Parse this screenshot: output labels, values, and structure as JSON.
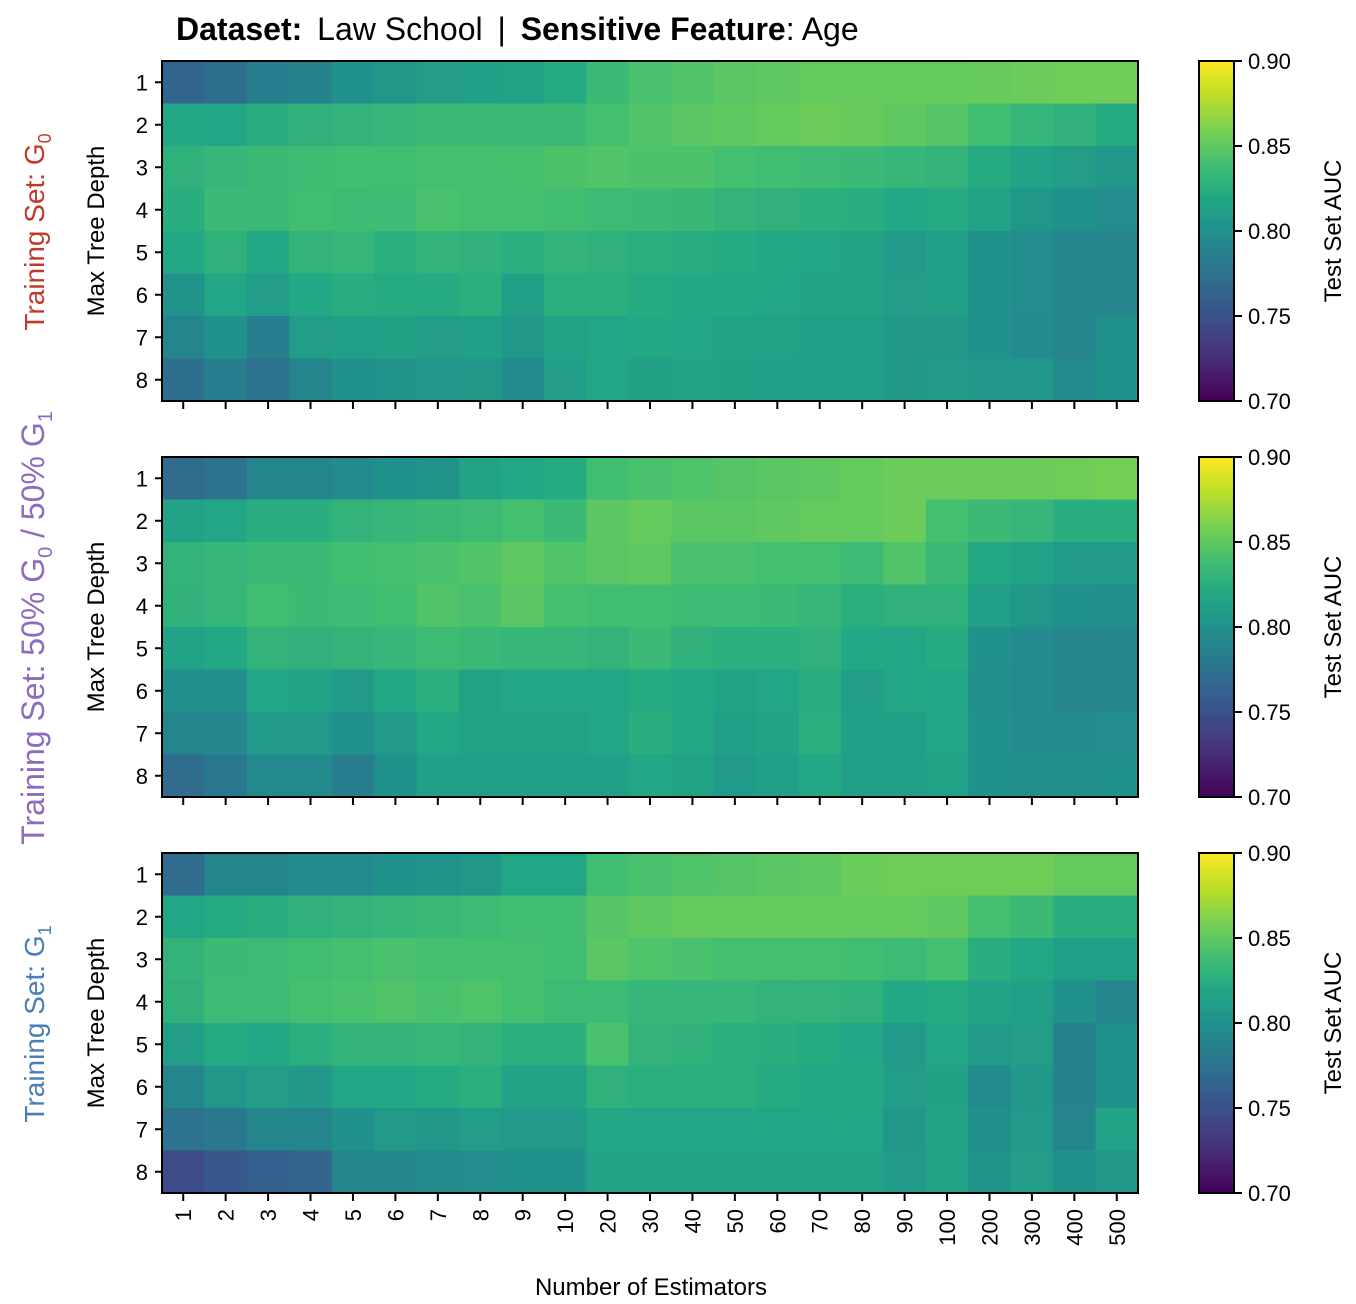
{
  "title": {
    "dataset_label": "Dataset:",
    "dataset_value": "Law School",
    "separator": "|",
    "feature_label": "Sensitive Feature",
    "feature_value": ": Age"
  },
  "panel_labels": [
    {
      "text": "Training Set: G",
      "subscript": "0",
      "color": "#c0392b"
    },
    {
      "text": "Training Set: 50% G",
      "subscript": "0",
      "mid": " / 50% G",
      "subscript2": "1",
      "color": "#8e6bbf"
    },
    {
      "text": "Training Set: G",
      "subscript": "1",
      "color": "#4a7fb5"
    }
  ],
  "chart_data": [
    {
      "type": "heatmap",
      "panel": "Training Set: G0",
      "xlabel": "Number of Estimators",
      "ylabel": "Max Tree Depth",
      "x_categories": [
        "1",
        "2",
        "3",
        "4",
        "5",
        "6",
        "7",
        "8",
        "9",
        "10",
        "20",
        "30",
        "40",
        "50",
        "60",
        "70",
        "80",
        "90",
        "100",
        "200",
        "300",
        "400",
        "500"
      ],
      "y_categories": [
        "1",
        "2",
        "3",
        "4",
        "5",
        "6",
        "7",
        "8"
      ],
      "colorbar": {
        "label": "Test Set AUC",
        "min": 0.7,
        "max": 0.9,
        "ticks": [
          "0.70",
          "0.75",
          "0.80",
          "0.85",
          "0.90"
        ],
        "colormap": "viridis"
      },
      "values": [
        [
          0.765,
          0.772,
          0.785,
          0.788,
          0.8,
          0.805,
          0.81,
          0.813,
          0.815,
          0.822,
          0.835,
          0.842,
          0.845,
          0.848,
          0.85,
          0.852,
          0.852,
          0.852,
          0.852,
          0.853,
          0.855,
          0.856,
          0.856
        ],
        [
          0.82,
          0.818,
          0.825,
          0.828,
          0.83,
          0.832,
          0.834,
          0.834,
          0.835,
          0.835,
          0.84,
          0.845,
          0.848,
          0.85,
          0.852,
          0.855,
          0.853,
          0.85,
          0.846,
          0.838,
          0.832,
          0.828,
          0.822
        ],
        [
          0.828,
          0.832,
          0.835,
          0.837,
          0.838,
          0.838,
          0.84,
          0.84,
          0.841,
          0.843,
          0.845,
          0.843,
          0.843,
          0.84,
          0.838,
          0.836,
          0.835,
          0.832,
          0.83,
          0.822,
          0.815,
          0.81,
          0.805
        ],
        [
          0.825,
          0.835,
          0.835,
          0.838,
          0.836,
          0.837,
          0.842,
          0.84,
          0.84,
          0.838,
          0.836,
          0.835,
          0.833,
          0.83,
          0.828,
          0.826,
          0.825,
          0.82,
          0.822,
          0.815,
          0.805,
          0.8,
          0.796
        ],
        [
          0.82,
          0.828,
          0.82,
          0.83,
          0.832,
          0.826,
          0.83,
          0.828,
          0.826,
          0.83,
          0.828,
          0.826,
          0.824,
          0.822,
          0.82,
          0.818,
          0.816,
          0.808,
          0.812,
          0.8,
          0.796,
          0.79,
          0.79
        ],
        [
          0.802,
          0.818,
          0.81,
          0.82,
          0.824,
          0.822,
          0.822,
          0.826,
          0.812,
          0.826,
          0.826,
          0.822,
          0.82,
          0.82,
          0.818,
          0.816,
          0.816,
          0.81,
          0.812,
          0.8,
          0.796,
          0.792,
          0.792
        ],
        [
          0.79,
          0.8,
          0.785,
          0.81,
          0.812,
          0.814,
          0.81,
          0.812,
          0.805,
          0.815,
          0.818,
          0.82,
          0.818,
          0.815,
          0.815,
          0.812,
          0.812,
          0.805,
          0.806,
          0.8,
          0.795,
          0.79,
          0.8
        ],
        [
          0.772,
          0.785,
          0.775,
          0.79,
          0.8,
          0.802,
          0.804,
          0.805,
          0.795,
          0.81,
          0.818,
          0.814,
          0.816,
          0.814,
          0.812,
          0.812,
          0.812,
          0.806,
          0.808,
          0.804,
          0.804,
          0.795,
          0.8
        ]
      ]
    },
    {
      "type": "heatmap",
      "panel": "Training Set: 50% G0 / 50% G1",
      "xlabel": "Number of Estimators",
      "ylabel": "Max Tree Depth",
      "x_categories": [
        "1",
        "2",
        "3",
        "4",
        "5",
        "6",
        "7",
        "8",
        "9",
        "10",
        "20",
        "30",
        "40",
        "50",
        "60",
        "70",
        "80",
        "90",
        "100",
        "200",
        "300",
        "400",
        "500"
      ],
      "y_categories": [
        "1",
        "2",
        "3",
        "4",
        "5",
        "6",
        "7",
        "8"
      ],
      "colorbar": {
        "label": "Test Set AUC",
        "min": 0.7,
        "max": 0.9,
        "ticks": [
          "0.70",
          "0.75",
          "0.80",
          "0.85",
          "0.90"
        ],
        "colormap": "viridis"
      },
      "values": [
        [
          0.77,
          0.775,
          0.79,
          0.79,
          0.795,
          0.8,
          0.802,
          0.815,
          0.82,
          0.822,
          0.838,
          0.842,
          0.844,
          0.846,
          0.848,
          0.85,
          0.852,
          0.855,
          0.855,
          0.855,
          0.855,
          0.856,
          0.858
        ],
        [
          0.815,
          0.818,
          0.825,
          0.825,
          0.83,
          0.832,
          0.834,
          0.836,
          0.84,
          0.835,
          0.848,
          0.852,
          0.848,
          0.848,
          0.85,
          0.852,
          0.852,
          0.855,
          0.84,
          0.835,
          0.832,
          0.825,
          0.825
        ],
        [
          0.83,
          0.832,
          0.834,
          0.835,
          0.838,
          0.84,
          0.842,
          0.845,
          0.85,
          0.845,
          0.848,
          0.85,
          0.842,
          0.842,
          0.84,
          0.84,
          0.836,
          0.845,
          0.835,
          0.82,
          0.815,
          0.808,
          0.808
        ],
        [
          0.828,
          0.832,
          0.838,
          0.835,
          0.836,
          0.838,
          0.845,
          0.842,
          0.848,
          0.84,
          0.838,
          0.838,
          0.836,
          0.836,
          0.835,
          0.832,
          0.826,
          0.828,
          0.828,
          0.812,
          0.805,
          0.8,
          0.798
        ],
        [
          0.815,
          0.82,
          0.83,
          0.828,
          0.83,
          0.832,
          0.836,
          0.834,
          0.832,
          0.832,
          0.83,
          0.835,
          0.828,
          0.826,
          0.826,
          0.828,
          0.82,
          0.818,
          0.822,
          0.8,
          0.795,
          0.79,
          0.79
        ],
        [
          0.798,
          0.798,
          0.818,
          0.815,
          0.808,
          0.82,
          0.826,
          0.816,
          0.818,
          0.818,
          0.818,
          0.822,
          0.82,
          0.816,
          0.818,
          0.824,
          0.81,
          0.818,
          0.818,
          0.798,
          0.795,
          0.79,
          0.792
        ],
        [
          0.79,
          0.792,
          0.808,
          0.808,
          0.8,
          0.808,
          0.82,
          0.815,
          0.815,
          0.815,
          0.818,
          0.825,
          0.82,
          0.812,
          0.815,
          0.826,
          0.812,
          0.812,
          0.818,
          0.8,
          0.795,
          0.795,
          0.796
        ],
        [
          0.77,
          0.78,
          0.795,
          0.795,
          0.785,
          0.8,
          0.812,
          0.812,
          0.812,
          0.812,
          0.812,
          0.818,
          0.816,
          0.808,
          0.812,
          0.82,
          0.812,
          0.812,
          0.815,
          0.8,
          0.798,
          0.798,
          0.8
        ]
      ]
    },
    {
      "type": "heatmap",
      "panel": "Training Set: G1",
      "xlabel": "Number of Estimators",
      "ylabel": "Max Tree Depth",
      "x_categories": [
        "1",
        "2",
        "3",
        "4",
        "5",
        "6",
        "7",
        "8",
        "9",
        "10",
        "20",
        "30",
        "40",
        "50",
        "60",
        "70",
        "80",
        "90",
        "100",
        "200",
        "300",
        "400",
        "500"
      ],
      "y_categories": [
        "1",
        "2",
        "3",
        "4",
        "5",
        "6",
        "7",
        "8"
      ],
      "colorbar": {
        "label": "Test Set AUC",
        "min": 0.7,
        "max": 0.9,
        "ticks": [
          "0.70",
          "0.75",
          "0.80",
          "0.85",
          "0.90"
        ],
        "colormap": "viridis"
      },
      "values": [
        [
          0.77,
          0.79,
          0.79,
          0.795,
          0.795,
          0.8,
          0.802,
          0.805,
          0.818,
          0.818,
          0.838,
          0.842,
          0.844,
          0.846,
          0.848,
          0.85,
          0.854,
          0.856,
          0.856,
          0.856,
          0.856,
          0.852,
          0.852
        ],
        [
          0.818,
          0.822,
          0.825,
          0.828,
          0.83,
          0.832,
          0.834,
          0.836,
          0.838,
          0.838,
          0.846,
          0.85,
          0.852,
          0.852,
          0.852,
          0.852,
          0.852,
          0.852,
          0.85,
          0.84,
          0.835,
          0.825,
          0.825
        ],
        [
          0.83,
          0.835,
          0.836,
          0.838,
          0.84,
          0.842,
          0.84,
          0.84,
          0.84,
          0.838,
          0.848,
          0.844,
          0.842,
          0.84,
          0.84,
          0.84,
          0.838,
          0.836,
          0.84,
          0.825,
          0.82,
          0.812,
          0.812
        ],
        [
          0.828,
          0.836,
          0.836,
          0.84,
          0.842,
          0.845,
          0.842,
          0.844,
          0.84,
          0.836,
          0.836,
          0.832,
          0.832,
          0.832,
          0.83,
          0.83,
          0.828,
          0.82,
          0.822,
          0.815,
          0.812,
          0.8,
          0.792
        ],
        [
          0.81,
          0.822,
          0.82,
          0.826,
          0.83,
          0.83,
          0.832,
          0.83,
          0.826,
          0.826,
          0.842,
          0.83,
          0.828,
          0.826,
          0.825,
          0.822,
          0.818,
          0.808,
          0.818,
          0.808,
          0.81,
          0.788,
          0.8
        ],
        [
          0.79,
          0.805,
          0.81,
          0.806,
          0.818,
          0.818,
          0.822,
          0.826,
          0.815,
          0.815,
          0.828,
          0.826,
          0.826,
          0.826,
          0.822,
          0.82,
          0.82,
          0.81,
          0.814,
          0.795,
          0.806,
          0.788,
          0.8
        ],
        [
          0.775,
          0.78,
          0.79,
          0.79,
          0.8,
          0.808,
          0.805,
          0.81,
          0.808,
          0.808,
          0.818,
          0.818,
          0.818,
          0.818,
          0.818,
          0.818,
          0.818,
          0.805,
          0.815,
          0.798,
          0.808,
          0.79,
          0.815
        ],
        [
          0.745,
          0.755,
          0.76,
          0.765,
          0.79,
          0.792,
          0.795,
          0.796,
          0.8,
          0.8,
          0.815,
          0.815,
          0.815,
          0.815,
          0.815,
          0.815,
          0.815,
          0.808,
          0.815,
          0.802,
          0.81,
          0.8,
          0.806
        ]
      ]
    }
  ]
}
